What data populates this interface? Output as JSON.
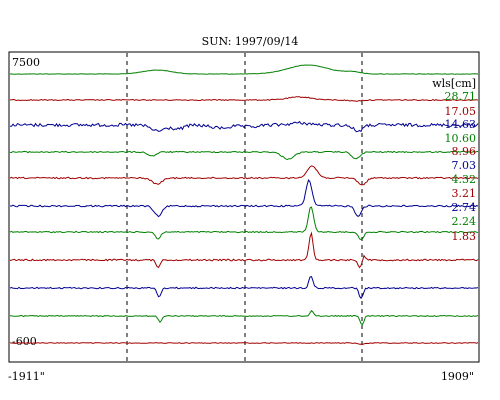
{
  "chart_data": {
    "type": "line",
    "title": "SUN: 1997/09/14",
    "y_top_label": "7500",
    "y_bottom_label": "-600",
    "x_left_label": "-1911\"",
    "x_right_label": "1909\"",
    "legend_title": "wls[cm]",
    "grid": "vertical dashed lines",
    "series": [
      {
        "name": "28.71",
        "color": "#008000"
      },
      {
        "name": "17.05",
        "color": "#a00000"
      },
      {
        "name": "14.63",
        "color": "#000090"
      },
      {
        "name": "10.60",
        "color": "#008000"
      },
      {
        "name": "8.96",
        "color": "#a00000"
      },
      {
        "name": "7.03",
        "color": "#000090"
      },
      {
        "name": "4.32",
        "color": "#008000"
      },
      {
        "name": "3.21",
        "color": "#a00000"
      },
      {
        "name": "2.74",
        "color": "#000090"
      },
      {
        "name": "2.24",
        "color": "#008000"
      },
      {
        "name": "1.83",
        "color": "#a00000"
      }
    ]
  }
}
